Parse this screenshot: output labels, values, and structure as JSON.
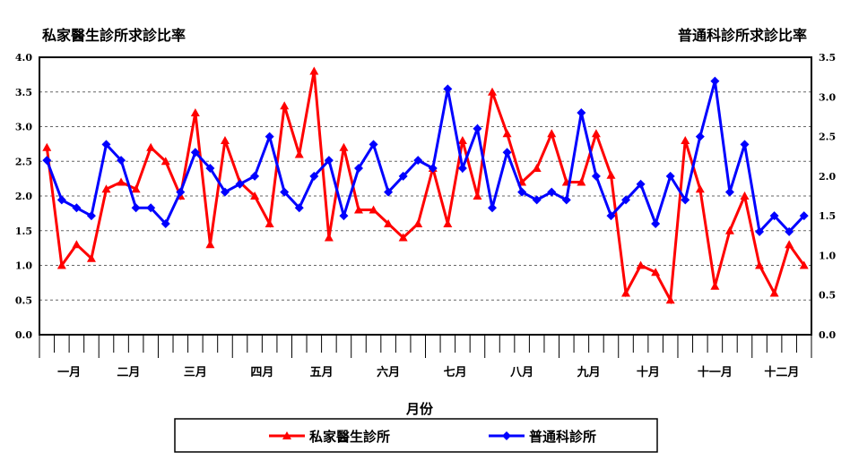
{
  "chart_data": {
    "type": "line",
    "left_title": "私家醫生診所求診比率",
    "right_title": "普通科診所求診比率",
    "xlabel": "月份",
    "months": [
      {
        "label": "一月",
        "weeks": 4
      },
      {
        "label": "二月",
        "weeks": 4
      },
      {
        "label": "三月",
        "weeks": 5
      },
      {
        "label": "四月",
        "weeks": 4
      },
      {
        "label": "五月",
        "weeks": 4
      },
      {
        "label": "六月",
        "weeks": 5
      },
      {
        "label": "七月",
        "weeks": 4
      },
      {
        "label": "八月",
        "weeks": 5
      },
      {
        "label": "九月",
        "weeks": 4
      },
      {
        "label": "十月",
        "weeks": 4
      },
      {
        "label": "十一月",
        "weeks": 5
      },
      {
        "label": "十二月",
        "weeks": 4
      }
    ],
    "left_axis": {
      "ylim": [
        0,
        4.0
      ],
      "ticks": [
        "0.0",
        "0.5",
        "1.0",
        "1.5",
        "2.0",
        "2.5",
        "3.0",
        "3.5",
        "4.0"
      ]
    },
    "right_axis": {
      "ylim": [
        0,
        3.5
      ],
      "ticks": [
        "0.0",
        "0.5",
        "1.0",
        "1.5",
        "2.0",
        "2.5",
        "3.0",
        "3.5"
      ]
    },
    "grid": true,
    "legend_placement": "bottom",
    "series": [
      {
        "name": "私家醫生診所",
        "axis": "left",
        "color": "#ff0000",
        "marker": "triangle",
        "values": [
          2.7,
          1.0,
          1.3,
          1.1,
          2.1,
          2.2,
          2.1,
          2.7,
          2.5,
          2.0,
          3.2,
          1.3,
          2.8,
          2.2,
          2.0,
          1.6,
          3.3,
          2.6,
          3.8,
          1.4,
          2.7,
          1.8,
          1.8,
          1.6,
          1.4,
          1.6,
          2.4,
          1.6,
          2.8,
          2.0,
          3.5,
          2.9,
          2.2,
          2.4,
          2.9,
          2.2,
          2.2,
          2.9,
          2.3,
          0.6,
          1.0,
          0.9,
          0.5,
          2.8,
          2.1,
          0.7,
          1.5,
          2.0,
          1.0,
          0.6,
          1.3,
          1.0
        ]
      },
      {
        "name": "普通科診所",
        "axis": "right",
        "color": "#0000ff",
        "marker": "diamond",
        "values": [
          2.2,
          1.7,
          1.6,
          1.5,
          2.4,
          2.2,
          1.6,
          1.6,
          1.4,
          1.8,
          2.3,
          2.1,
          1.8,
          1.9,
          2.0,
          2.5,
          1.8,
          1.6,
          2.0,
          2.2,
          1.5,
          2.1,
          2.4,
          1.8,
          2.0,
          2.2,
          2.1,
          3.1,
          2.1,
          2.6,
          1.6,
          2.3,
          1.8,
          1.7,
          1.8,
          1.7,
          2.8,
          2.0,
          1.5,
          1.7,
          1.9,
          1.4,
          2.0,
          1.7,
          2.5,
          3.2,
          1.8,
          2.4,
          1.3,
          1.5,
          1.3,
          1.5
        ]
      }
    ]
  }
}
